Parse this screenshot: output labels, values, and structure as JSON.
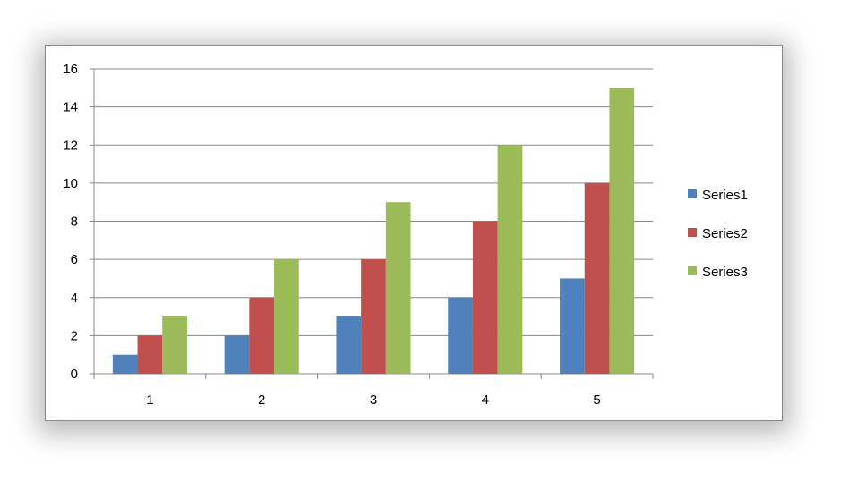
{
  "chart_data": {
    "type": "bar",
    "categories": [
      "1",
      "2",
      "3",
      "4",
      "5"
    ],
    "series": [
      {
        "name": "Series1",
        "values": [
          1,
          2,
          3,
          4,
          5
        ],
        "color": "#4F81BD"
      },
      {
        "name": "Series2",
        "values": [
          2,
          4,
          6,
          8,
          10
        ],
        "color": "#C0504D"
      },
      {
        "name": "Series3",
        "values": [
          3,
          6,
          9,
          12,
          15
        ],
        "color": "#9BBB59"
      }
    ],
    "ylim": [
      0,
      16
    ],
    "yticks": [
      0,
      2,
      4,
      6,
      8,
      10,
      12,
      14,
      16
    ],
    "grid": true,
    "legend": "right",
    "title": "",
    "xlabel": "",
    "ylabel": ""
  }
}
